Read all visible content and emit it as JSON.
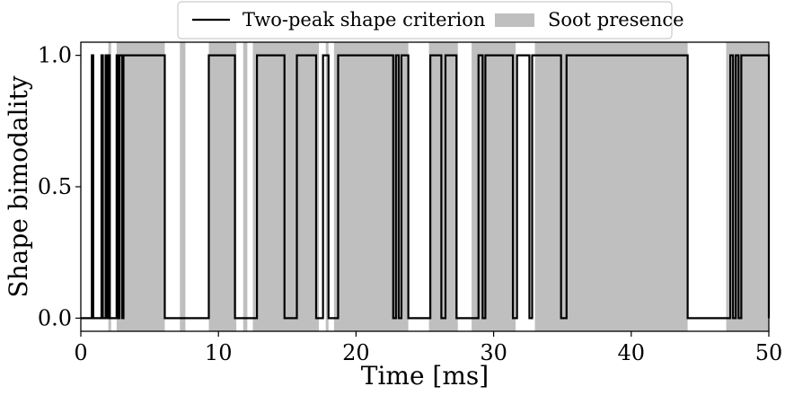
{
  "chart_data": {
    "type": "line",
    "xlabel": "Time [ms]",
    "ylabel": "Shape bimodality",
    "xlim": [
      0,
      50
    ],
    "ylim": [
      -0.05,
      1.05
    ],
    "xticks": [
      0,
      10,
      20,
      30,
      40,
      50
    ],
    "xtick_labels": [
      "0",
      "10",
      "20",
      "30",
      "40",
      "50"
    ],
    "yticks": [
      0.0,
      0.5,
      1.0
    ],
    "ytick_labels": [
      "0.0",
      "0.5",
      "1.0"
    ],
    "grid": false,
    "legend": {
      "placement": "top-center-outside",
      "entries": [
        {
          "label": "Two-peak shape criterion",
          "kind": "line",
          "color": "#000000"
        },
        {
          "label": "Soot presence",
          "kind": "patch",
          "color": "#bfbfbf"
        }
      ]
    },
    "series": [
      {
        "name": "Two-peak shape criterion",
        "color": "#000000",
        "kind": "step",
        "intervals_at_1": [
          [
            0.8,
            0.9
          ],
          [
            1.5,
            1.6
          ],
          [
            1.8,
            1.9
          ],
          [
            2.0,
            2.1
          ],
          [
            2.6,
            2.7
          ],
          [
            2.8,
            3.0
          ],
          [
            3.1,
            6.1
          ],
          [
            9.3,
            11.2
          ],
          [
            12.8,
            14.8
          ],
          [
            15.7,
            17.1
          ],
          [
            17.6,
            18.0
          ],
          [
            18.7,
            22.7
          ],
          [
            22.9,
            23.1
          ],
          [
            23.3,
            23.8
          ],
          [
            25.4,
            26.2
          ],
          [
            26.5,
            27.3
          ],
          [
            28.9,
            29.2
          ],
          [
            29.4,
            31.4
          ],
          [
            31.7,
            32.6
          ],
          [
            32.8,
            34.9
          ],
          [
            35.3,
            44.1
          ],
          [
            47.2,
            47.4
          ],
          [
            47.6,
            47.8
          ],
          [
            48.0,
            50.0
          ]
        ]
      },
      {
        "name": "Soot presence",
        "color": "#bfbfbf",
        "kind": "span",
        "intervals": [
          [
            2.0,
            2.2
          ],
          [
            2.6,
            6.1
          ],
          [
            7.2,
            7.6
          ],
          [
            9.3,
            11.3
          ],
          [
            11.8,
            12.1
          ],
          [
            12.5,
            17.3
          ],
          [
            17.8,
            18.0
          ],
          [
            18.4,
            23.8
          ],
          [
            25.3,
            27.4
          ],
          [
            28.4,
            31.6
          ],
          [
            33.0,
            44.1
          ],
          [
            46.9,
            50.0
          ]
        ]
      }
    ]
  }
}
